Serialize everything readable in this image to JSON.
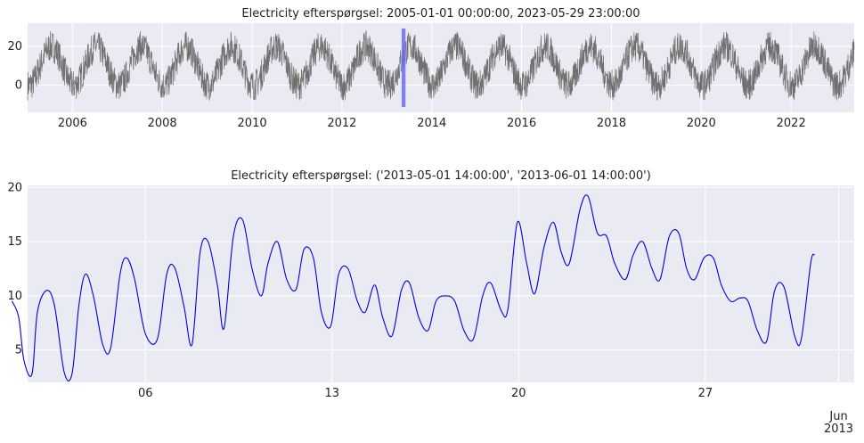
{
  "chart_data": [
    {
      "type": "line",
      "title": "Electricity efterspørgsel: 2005-01-01 00:00:00, 2023-05-29 23:00:00",
      "x_range": [
        "2005-01-01",
        "2023-05-29"
      ],
      "ylim": [
        -14,
        32
      ],
      "y_ticks": [
        0,
        20
      ],
      "x_ticks": [
        {
          "date": "2006-01-01",
          "label": "2006"
        },
        {
          "date": "2008-01-01",
          "label": "2008"
        },
        {
          "date": "2010-01-01",
          "label": "2010"
        },
        {
          "date": "2012-01-01",
          "label": "2012"
        },
        {
          "date": "2014-01-01",
          "label": "2014"
        },
        {
          "date": "2016-01-01",
          "label": "2016"
        },
        {
          "date": "2018-01-01",
          "label": "2018"
        },
        {
          "date": "2020-01-01",
          "label": "2020"
        },
        {
          "date": "2022-01-01",
          "label": "2022"
        }
      ],
      "series": [
        {
          "color": "#707070",
          "seasonal_profile": {
            "description_note": "",
            "annual_min_low": -7,
            "annual_max_high": 27
          }
        }
      ],
      "highlight": {
        "start": "2013-05-01",
        "end": "2013-06-01",
        "color": "#6a6aff"
      },
      "grid": true,
      "background": "#eaeaf2"
    },
    {
      "type": "line",
      "title": "Electricity efterspørgsel: ('2013-05-01 14:00:00', '2013-06-01 14:00:00')",
      "x_range": [
        "2013-05-01",
        "2013-06-01"
      ],
      "ylim": [
        2,
        20.2
      ],
      "y_ticks": [
        5,
        10,
        15,
        20
      ],
      "x_ticks": [
        {
          "date": "2013-05-06",
          "label": "06"
        },
        {
          "date": "2013-05-13",
          "label": "13"
        },
        {
          "date": "2013-05-20",
          "label": "20"
        },
        {
          "date": "2013-05-27",
          "label": "27"
        },
        {
          "date": "2013-06-01",
          "label": "Jun\n2013"
        }
      ],
      "series": [
        {
          "color": "#0000dd",
          "x": [
            1.0,
            1.25,
            1.45,
            1.75,
            1.95,
            2.3,
            2.6,
            2.95,
            3.25,
            3.5,
            3.75,
            4.05,
            4.4,
            4.7,
            5.05,
            5.3,
            5.6,
            6.0,
            6.45,
            6.8,
            7.1,
            7.45,
            7.75,
            8.05,
            8.35,
            8.7,
            8.95,
            9.3,
            9.65,
            10.0,
            10.35,
            10.6,
            10.95,
            11.3,
            11.65,
            11.95,
            12.3,
            12.6,
            12.95,
            13.25,
            13.6,
            13.95,
            14.25,
            14.6,
            14.9,
            15.25,
            15.6,
            15.9,
            16.25,
            16.6,
            16.9,
            17.25,
            17.6,
            17.95,
            18.3,
            18.65,
            18.95,
            19.35,
            19.6,
            19.95,
            20.3,
            20.6,
            20.95,
            21.3,
            21.6,
            21.9,
            22.3,
            22.6,
            22.95,
            23.3,
            23.6,
            24.0,
            24.3,
            24.65,
            25.0,
            25.3,
            25.65,
            26.0,
            26.3,
            26.6,
            26.95,
            27.3,
            27.6,
            27.95,
            28.3,
            28.6,
            28.95,
            29.3,
            29.6,
            29.95,
            30.35,
            30.6,
            30.95,
            31.1
          ],
          "y": [
            9.5,
            8.0,
            4.0,
            2.8,
            8.5,
            10.5,
            9.0,
            3.0,
            2.8,
            9.0,
            12.0,
            10.0,
            5.5,
            5.2,
            12.0,
            13.5,
            11.5,
            6.5,
            6.0,
            12.0,
            12.6,
            9.0,
            5.5,
            14.0,
            15.0,
            11.0,
            7.0,
            15.5,
            17.0,
            12.5,
            10.0,
            13.0,
            15.0,
            11.5,
            10.6,
            14.3,
            13.5,
            8.5,
            7.2,
            12.0,
            12.5,
            9.5,
            8.5,
            11.0,
            8.0,
            6.3,
            10.5,
            11.2,
            8.0,
            6.8,
            9.5,
            10.0,
            9.5,
            6.8,
            6.0,
            10.0,
            11.2,
            8.6,
            8.8,
            16.8,
            13.0,
            10.2,
            14.5,
            16.8,
            14.0,
            13.0,
            18.0,
            19.2,
            15.8,
            15.5,
            13.0,
            11.5,
            13.8,
            15.0,
            12.5,
            11.5,
            15.5,
            15.8,
            12.5,
            11.5,
            13.5,
            13.5,
            11.0,
            9.5,
            9.8,
            9.5,
            6.8,
            5.8,
            10.5,
            10.8,
            6.3,
            6.0,
            13.0,
            13.8
          ]
        }
      ],
      "grid": true,
      "background": "#eaeaf2"
    }
  ]
}
